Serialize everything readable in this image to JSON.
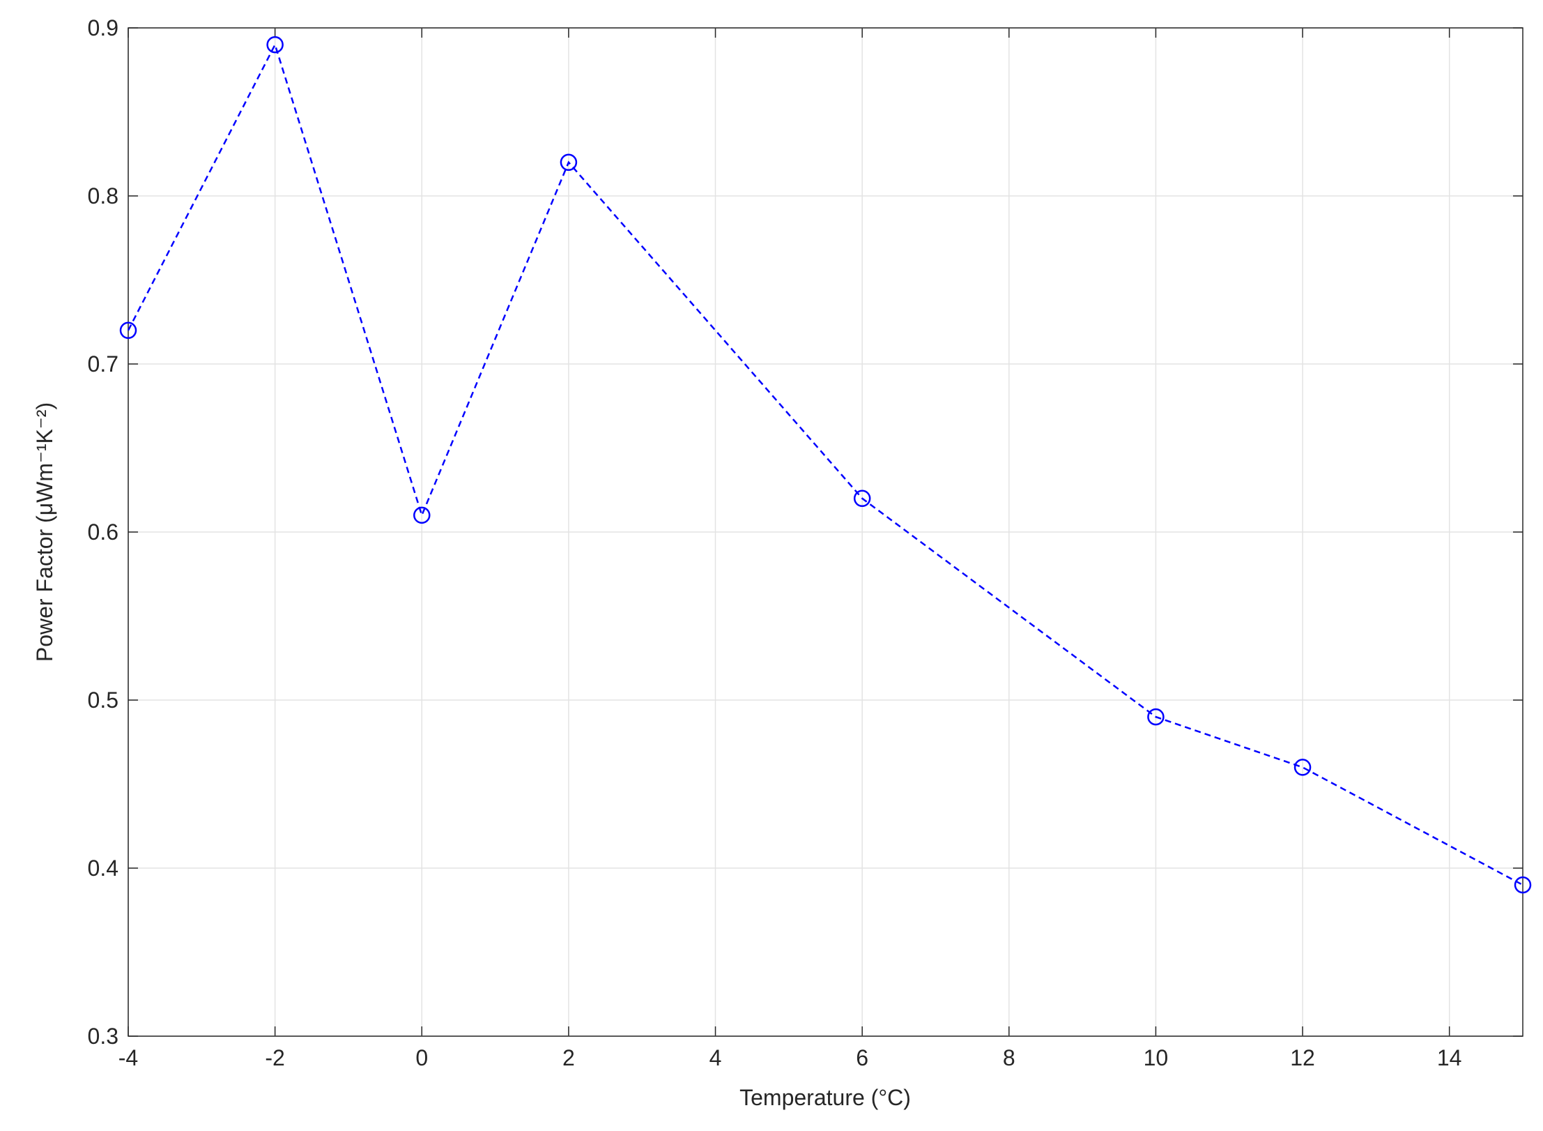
{
  "chart_data": {
    "type": "line",
    "xlabel": "Temperature (°C)",
    "ylabel": "Power Factor (μWm⁻¹K⁻²)",
    "x": [
      -4,
      -2,
      0,
      2,
      6,
      10,
      12,
      15
    ],
    "values": [
      0.72,
      0.89,
      0.61,
      0.82,
      0.62,
      0.49,
      0.46,
      0.39
    ],
    "color": "#0000ff",
    "marker": "circle",
    "line_style": "dashed",
    "xlim": [
      -4,
      15
    ],
    "xticks": [
      -4,
      -2,
      0,
      2,
      4,
      6,
      8,
      10,
      12,
      14
    ],
    "ylim": [
      0.3,
      0.9
    ],
    "yticks": [
      0.3,
      0.4,
      0.5,
      0.6,
      0.7,
      0.8,
      0.9
    ],
    "grid": true
  }
}
